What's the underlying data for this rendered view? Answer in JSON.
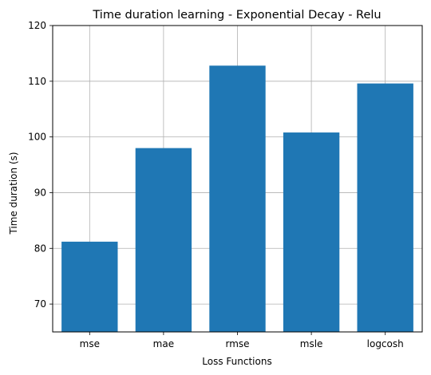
{
  "chart_data": {
    "type": "bar",
    "title": "Time duration learning - Exponential Decay - Relu",
    "xlabel": "Loss Functions",
    "ylabel": "Time duration (s)",
    "categories": [
      "mse",
      "mae",
      "rmse",
      "msle",
      "logcosh"
    ],
    "values": [
      81.2,
      98.0,
      112.8,
      100.8,
      109.6
    ],
    "ylim": [
      65,
      120
    ],
    "yticks": [
      70,
      80,
      90,
      100,
      110,
      120
    ],
    "grid": true,
    "bar_color": "#1f77b4"
  }
}
